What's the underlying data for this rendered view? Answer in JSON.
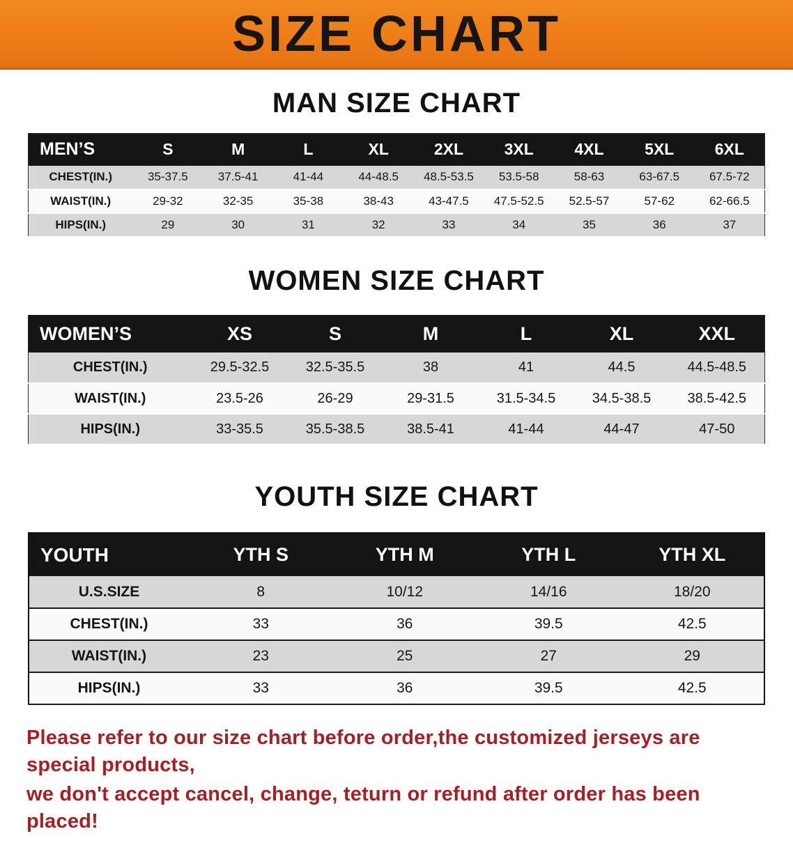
{
  "banner": {
    "title": "SIZE CHART"
  },
  "colors": {
    "banner_bg": "#ee7d17",
    "banner_text": "#151515",
    "table_header_bg": "#141414",
    "table_header_text": "#ffffff",
    "row_gray": "#d7d7d7",
    "row_light": "#fbfbfb",
    "footer_text": "#a81e22"
  },
  "sections": [
    {
      "heading": "MAN SIZE CHART",
      "table": {
        "corner": "MEN’S",
        "columns": [
          "S",
          "M",
          "L",
          "XL",
          "2XL",
          "3XL",
          "4XL",
          "5XL",
          "6XL"
        ],
        "rows": [
          {
            "label": "CHEST(IN.)",
            "values": [
              "35-37.5",
              "37.5-41",
              "41-44",
              "44-48.5",
              "48.5-53.5",
              "53.5-58",
              "58-63",
              "63-67.5",
              "67.5-72"
            ]
          },
          {
            "label": "WAIST(IN.)",
            "values": [
              "29-32",
              "32-35",
              "35-38",
              "38-43",
              "43-47.5",
              "47.5-52.5",
              "52.5-57",
              "57-62",
              "62-66.5"
            ]
          },
          {
            "label": "HIPS(IN.)",
            "values": [
              "29",
              "30",
              "31",
              "32",
              "33",
              "34",
              "35",
              "36",
              "37"
            ]
          }
        ]
      }
    },
    {
      "heading": "WOMEN SIZE CHART",
      "table": {
        "corner": "WOMEN’S",
        "columns": [
          "XS",
          "S",
          "M",
          "L",
          "XL",
          "XXL"
        ],
        "rows": [
          {
            "label": "CHEST(IN.)",
            "values": [
              "29.5-32.5",
              "32.5-35.5",
              "38",
              "41",
              "44.5",
              "44.5-48.5"
            ]
          },
          {
            "label": "WAIST(IN.)",
            "values": [
              "23.5-26",
              "26-29",
              "29-31.5",
              "31.5-34.5",
              "34.5-38.5",
              "38.5-42.5"
            ]
          },
          {
            "label": "HIPS(IN.)",
            "values": [
              "33-35.5",
              "35.5-38.5",
              "38.5-41",
              "41-44",
              "44-47",
              "47-50"
            ]
          }
        ]
      }
    },
    {
      "heading": "YOUTH SIZE CHART",
      "table": {
        "corner": "YOUTH",
        "columns": [
          "YTH S",
          "YTH M",
          "YTH L",
          "YTH XL"
        ],
        "rows": [
          {
            "label": "U.S.SIZE",
            "values": [
              "8",
              "10/12",
              "14/16",
              "18/20"
            ]
          },
          {
            "label": "CHEST(IN.)",
            "values": [
              "33",
              "36",
              "39.5",
              "42.5"
            ]
          },
          {
            "label": "WAIST(IN.)",
            "values": [
              "23",
              "25",
              "27",
              "29"
            ]
          },
          {
            "label": "HIPS(IN.)",
            "values": [
              "33",
              "36",
              "39.5",
              "42.5"
            ]
          }
        ]
      }
    }
  ],
  "footer": {
    "line1": "Please refer to our size chart before order,the customized jerseys are special products,",
    "line2": "we don't accept cancel, change, teturn or refund after order has been placed!"
  }
}
